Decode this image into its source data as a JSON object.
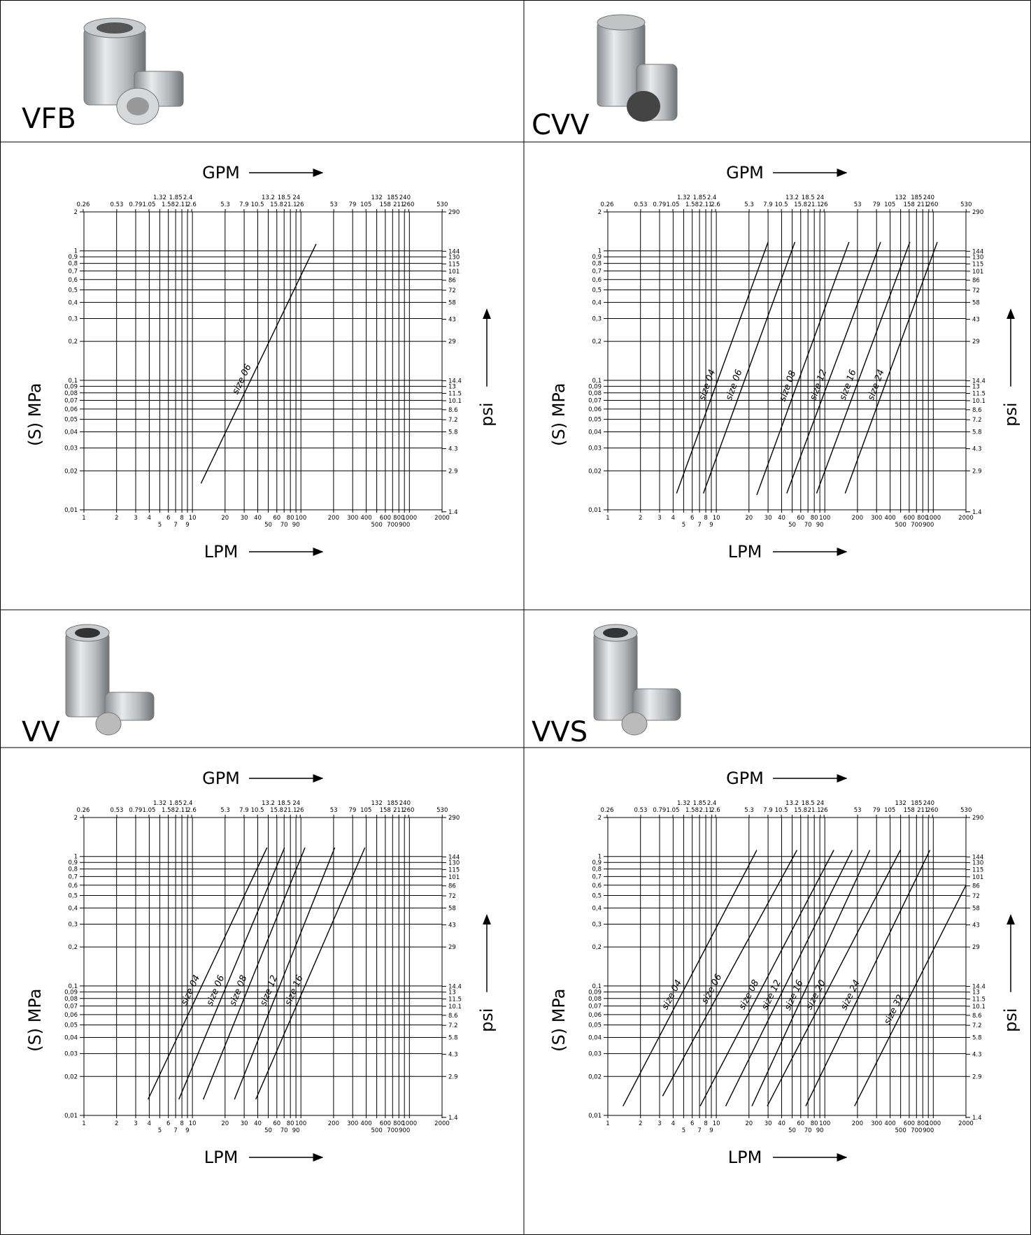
{
  "products": [
    {
      "name": "VFB"
    },
    {
      "name": "CVV"
    },
    {
      "name": "VV"
    },
    {
      "name": "VVS"
    }
  ],
  "chart_data": [
    {
      "type": "line",
      "x_label": "LPM",
      "x2_label": "GPM",
      "y_label": "(S) MPa",
      "y2_label": "psi",
      "log_x": true,
      "log_y": true,
      "grid": true,
      "xlim": [
        1,
        2000
      ],
      "x2lim": [
        0.264,
        528
      ],
      "ylim": [
        0.01,
        2
      ],
      "y2lim": [
        1.45,
        290
      ],
      "xticks": [
        1,
        2,
        3,
        4,
        5,
        6,
        7,
        8,
        9,
        10,
        20,
        30,
        40,
        50,
        60,
        70,
        80,
        90,
        100,
        200,
        300,
        400,
        500,
        600,
        700,
        800,
        900,
        1000,
        2000
      ],
      "x2ticks": [
        0.26,
        0.53,
        0.79,
        1.05,
        1.32,
        1.58,
        1.85,
        2.11,
        2.4,
        2.6,
        5.3,
        7.9,
        10.5,
        13.2,
        15.8,
        18.5,
        21.1,
        24,
        26,
        53,
        79,
        105,
        132,
        158,
        185,
        211,
        240,
        260,
        530
      ],
      "yticks": [
        {
          "value": 0.01,
          "label": "0,01"
        },
        {
          "value": 0.02,
          "label": "0,02"
        },
        {
          "value": 0.03,
          "label": "0,03"
        },
        {
          "value": 0.04,
          "label": "0,04"
        },
        {
          "value": 0.05,
          "label": "0,05"
        },
        {
          "value": 0.06,
          "label": "0,06"
        },
        {
          "value": 0.07,
          "label": "0,07"
        },
        {
          "value": 0.08,
          "label": "0,08"
        },
        {
          "value": 0.09,
          "label": "0,09"
        },
        {
          "value": 0.1,
          "label": "0,1"
        },
        {
          "value": 0.2,
          "label": "0,2"
        },
        {
          "value": 0.3,
          "label": "0,3"
        },
        {
          "value": 0.4,
          "label": "0,4"
        },
        {
          "value": 0.5,
          "label": "0,5"
        },
        {
          "value": 0.6,
          "label": "0,6"
        },
        {
          "value": 0.7,
          "label": "0,7"
        },
        {
          "value": 0.8,
          "label": "0,8"
        },
        {
          "value": 0.9,
          "label": "0,9"
        },
        1,
        2
      ],
      "y2ticks": [
        1.4,
        2.9,
        4.3,
        5.8,
        7.2,
        8.6,
        10.1,
        11.5,
        13,
        14.4,
        29,
        43,
        58,
        72,
        86,
        101,
        115,
        130,
        144,
        290
      ],
      "series": [
        {
          "name": "size 06",
          "color": "#000000",
          "x": [
            12,
            138
          ],
          "values": [
            0.016,
            1.13
          ]
        }
      ]
    },
    {
      "type": "line",
      "x_label": "LPM",
      "x2_label": "GPM",
      "y_label": "(S) MPa",
      "y2_label": "psi",
      "log_x": true,
      "log_y": true,
      "grid": true,
      "xlim": [
        1,
        2000
      ],
      "x2lim": [
        0.264,
        528
      ],
      "ylim": [
        0.01,
        2
      ],
      "y2lim": [
        1.45,
        290
      ],
      "xticks": [
        1,
        2,
        3,
        4,
        5,
        6,
        7,
        8,
        9,
        10,
        20,
        30,
        40,
        50,
        60,
        70,
        80,
        90,
        100,
        200,
        300,
        400,
        500,
        600,
        700,
        800,
        900,
        1000,
        2000
      ],
      "x2ticks": [
        0.26,
        0.53,
        0.79,
        1.05,
        1.32,
        1.58,
        1.85,
        2.11,
        2.4,
        2.6,
        5.3,
        7.9,
        10.5,
        13.2,
        15.8,
        18.5,
        21.1,
        24,
        26,
        53,
        79,
        105,
        132,
        158,
        185,
        211,
        240,
        260,
        530
      ],
      "yticks": [
        {
          "value": 0.01,
          "label": "0,01"
        },
        {
          "value": 0.02,
          "label": "0,02"
        },
        {
          "value": 0.03,
          "label": "0,03"
        },
        {
          "value": 0.04,
          "label": "0,04"
        },
        {
          "value": 0.05,
          "label": "0,05"
        },
        {
          "value": 0.06,
          "label": "0,06"
        },
        {
          "value": 0.07,
          "label": "0,07"
        },
        {
          "value": 0.08,
          "label": "0,08"
        },
        {
          "value": 0.09,
          "label": "0,09"
        },
        {
          "value": 0.1,
          "label": "0,1"
        },
        {
          "value": 0.2,
          "label": "0,2"
        },
        {
          "value": 0.3,
          "label": "0,3"
        },
        {
          "value": 0.4,
          "label": "0,4"
        },
        {
          "value": 0.5,
          "label": "0,5"
        },
        {
          "value": 0.6,
          "label": "0,6"
        },
        {
          "value": 0.7,
          "label": "0,7"
        },
        {
          "value": 0.8,
          "label": "0,8"
        },
        {
          "value": 0.9,
          "label": "0,9"
        },
        1,
        2
      ],
      "y2ticks": [
        1.4,
        2.9,
        4.3,
        5.8,
        7.2,
        8.6,
        10.1,
        11.5,
        13,
        14.4,
        29,
        43,
        58,
        72,
        86,
        101,
        115,
        130,
        144,
        290
      ],
      "series": [
        {
          "name": "size 04",
          "color": "#000000",
          "x": [
            4.3,
            30
          ],
          "values": [
            0.0134,
            1.17
          ]
        },
        {
          "name": "size 06",
          "color": "#000000",
          "x": [
            7.6,
            53
          ],
          "values": [
            0.0134,
            1.17
          ]
        },
        {
          "name": "size 08",
          "color": "#000000",
          "x": [
            23.6,
            167
          ],
          "values": [
            0.013,
            1.17
          ]
        },
        {
          "name": "size 12",
          "color": "#000000",
          "x": [
            44.6,
            327
          ],
          "values": [
            0.0134,
            1.17
          ]
        },
        {
          "name": "size 16",
          "color": "#000000",
          "x": [
            84,
            608
          ],
          "values": [
            0.0134,
            1.17
          ]
        },
        {
          "name": "size 24",
          "color": "#000000",
          "x": [
            154,
            1089
          ],
          "values": [
            0.0134,
            1.17
          ]
        }
      ]
    },
    {
      "type": "line",
      "x_label": "LPM",
      "x2_label": "GPM",
      "y_label": "(S) MPa",
      "y2_label": "psi",
      "log_x": true,
      "log_y": true,
      "grid": true,
      "xlim": [
        1,
        2000
      ],
      "x2lim": [
        0.264,
        528
      ],
      "ylim": [
        0.01,
        2
      ],
      "y2lim": [
        1.45,
        290
      ],
      "xticks": [
        1,
        2,
        3,
        4,
        5,
        6,
        7,
        8,
        9,
        10,
        20,
        30,
        40,
        50,
        60,
        70,
        80,
        90,
        100,
        200,
        300,
        400,
        500,
        600,
        700,
        800,
        900,
        1000,
        2000
      ],
      "x2ticks": [
        0.26,
        0.53,
        0.79,
        1.05,
        1.32,
        1.58,
        1.85,
        2.11,
        2.4,
        2.6,
        5.3,
        7.9,
        10.5,
        13.2,
        15.8,
        18.5,
        21.1,
        24,
        26,
        53,
        79,
        105,
        132,
        158,
        185,
        211,
        240,
        260,
        530
      ],
      "yticks": [
        {
          "value": 0.01,
          "label": "0,01"
        },
        {
          "value": 0.02,
          "label": "0,02"
        },
        {
          "value": 0.03,
          "label": "0,03"
        },
        {
          "value": 0.04,
          "label": "0,04"
        },
        {
          "value": 0.05,
          "label": "0,05"
        },
        {
          "value": 0.06,
          "label": "0,06"
        },
        {
          "value": 0.07,
          "label": "0,07"
        },
        {
          "value": 0.08,
          "label": "0,08"
        },
        {
          "value": 0.09,
          "label": "0,09"
        },
        {
          "value": 0.1,
          "label": "0,1"
        },
        {
          "value": 0.2,
          "label": "0,2"
        },
        {
          "value": 0.3,
          "label": "0,3"
        },
        {
          "value": 0.4,
          "label": "0,4"
        },
        {
          "value": 0.5,
          "label": "0,5"
        },
        {
          "value": 0.6,
          "label": "0,6"
        },
        {
          "value": 0.7,
          "label": "0,7"
        },
        {
          "value": 0.8,
          "label": "0,8"
        },
        {
          "value": 0.9,
          "label": "0,9"
        },
        1,
        2
      ],
      "y2ticks": [
        1.4,
        2.9,
        4.3,
        5.8,
        7.2,
        8.6,
        10.1,
        11.5,
        13,
        14.4,
        29,
        43,
        58,
        72,
        86,
        101,
        115,
        130,
        144,
        290
      ],
      "series": [
        {
          "name": "size 04",
          "color": "#000000",
          "x": [
            3.9,
            48.7
          ],
          "values": [
            0.0133,
            1.17
          ]
        },
        {
          "name": "size 06",
          "color": "#000000",
          "x": [
            7.5,
            70.6
          ],
          "values": [
            0.0133,
            1.17
          ]
        },
        {
          "name": "size 08",
          "color": "#000000",
          "x": [
            12.6,
            109
          ],
          "values": [
            0.0133,
            1.17
          ]
        },
        {
          "name": "size 12",
          "color": "#000000",
          "x": [
            24.4,
            205
          ],
          "values": [
            0.0133,
            1.17
          ]
        },
        {
          "name": "size 16",
          "color": "#000000",
          "x": [
            38.4,
            389
          ],
          "values": [
            0.0133,
            1.17
          ]
        }
      ]
    },
    {
      "type": "line",
      "x_label": "LPM",
      "x2_label": "GPM",
      "y_label": "(S) MPa",
      "y2_label": "psi",
      "log_x": true,
      "log_y": true,
      "grid": true,
      "xlim": [
        1,
        2000
      ],
      "x2lim": [
        0.264,
        528
      ],
      "ylim": [
        0.01,
        2
      ],
      "y2lim": [
        1.45,
        290
      ],
      "xticks": [
        1,
        2,
        3,
        4,
        5,
        6,
        7,
        8,
        9,
        10,
        20,
        30,
        40,
        50,
        60,
        70,
        80,
        90,
        100,
        200,
        300,
        400,
        500,
        600,
        700,
        800,
        900,
        1000,
        2000
      ],
      "x2ticks": [
        0.26,
        0.53,
        0.79,
        1.05,
        1.32,
        1.58,
        1.85,
        2.11,
        2.4,
        2.6,
        5.3,
        7.9,
        10.5,
        13.2,
        15.8,
        18.5,
        21.1,
        24,
        26,
        53,
        79,
        105,
        132,
        158,
        185,
        211,
        240,
        260,
        530
      ],
      "yticks": [
        {
          "value": 0.01,
          "label": "0,01"
        },
        {
          "value": 0.02,
          "label": "0,02"
        },
        {
          "value": 0.03,
          "label": "0,03"
        },
        {
          "value": 0.04,
          "label": "0,04"
        },
        {
          "value": 0.05,
          "label": "0,05"
        },
        {
          "value": 0.06,
          "label": "0,06"
        },
        {
          "value": 0.07,
          "label": "0,07"
        },
        {
          "value": 0.08,
          "label": "0,08"
        },
        {
          "value": 0.09,
          "label": "0,09"
        },
        {
          "value": 0.1,
          "label": "0,1"
        },
        {
          "value": 0.2,
          "label": "0,2"
        },
        {
          "value": 0.3,
          "label": "0,3"
        },
        {
          "value": 0.4,
          "label": "0,4"
        },
        {
          "value": 0.5,
          "label": "0,5"
        },
        {
          "value": 0.6,
          "label": "0,6"
        },
        {
          "value": 0.7,
          "label": "0,7"
        },
        {
          "value": 0.8,
          "label": "0,8"
        },
        {
          "value": 0.9,
          "label": "0,9"
        },
        1,
        2
      ],
      "y2ticks": [
        1.4,
        2.9,
        4.3,
        5.8,
        7.2,
        8.6,
        10.1,
        11.5,
        13,
        14.4,
        29,
        43,
        58,
        72,
        86,
        101,
        115,
        130,
        144,
        290
      ],
      "series": [
        {
          "name": "size 04",
          "color": "#000000",
          "x": [
            1.38,
            23.6
          ],
          "values": [
            0.0118,
            1.12
          ]
        },
        {
          "name": "size 06",
          "color": "#000000",
          "x": [
            3.2,
            55.4
          ],
          "values": [
            0.0141,
            1.12
          ]
        },
        {
          "name": "size 08",
          "color": "#000000",
          "x": [
            7.1,
            121
          ],
          "values": [
            0.0118,
            1.12
          ]
        },
        {
          "name": "size 12",
          "color": "#000000",
          "x": [
            12.2,
            179
          ],
          "values": [
            0.0118,
            1.12
          ]
        },
        {
          "name": "size 16",
          "color": "#000000",
          "x": [
            21.3,
            260
          ],
          "values": [
            0.0118,
            1.12
          ]
        },
        {
          "name": "size 20",
          "color": "#000000",
          "x": [
            29.5,
            497
          ],
          "values": [
            0.0118,
            1.12
          ]
        },
        {
          "name": "size 24",
          "color": "#000000",
          "x": [
            66.7,
            931
          ],
          "values": [
            0.0118,
            1.12
          ]
        },
        {
          "name": "size 32",
          "color": "#000000",
          "x": [
            188,
            2000
          ],
          "values": [
            0.0118,
            0.6
          ]
        }
      ]
    }
  ]
}
